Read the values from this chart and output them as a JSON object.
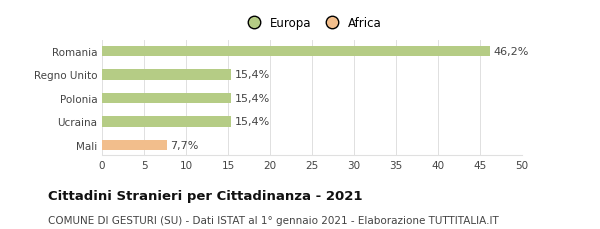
{
  "categories": [
    "Mali",
    "Ucraina",
    "Polonia",
    "Regno Unito",
    "Romania"
  ],
  "values": [
    7.7,
    15.4,
    15.4,
    15.4,
    46.2
  ],
  "labels": [
    "7,7%",
    "15,4%",
    "15,4%",
    "15,4%",
    "46,2%"
  ],
  "colors": [
    "#f2be8c",
    "#b5cc85",
    "#b5cc85",
    "#b5cc85",
    "#b5cc85"
  ],
  "legend_items": [
    {
      "label": "Europa",
      "color": "#b5cc85"
    },
    {
      "label": "Africa",
      "color": "#f2be8c"
    }
  ],
  "xlim": [
    0,
    50
  ],
  "xticks": [
    0,
    5,
    10,
    15,
    20,
    25,
    30,
    35,
    40,
    45,
    50
  ],
  "title": "Cittadini Stranieri per Cittadinanza - 2021",
  "subtitle": "COMUNE DI GESTURI (SU) - Dati ISTAT al 1° gennaio 2021 - Elaborazione TUTTITALIA.IT",
  "title_fontsize": 9.5,
  "subtitle_fontsize": 7.5,
  "bar_height": 0.45,
  "label_fontsize": 8,
  "tick_fontsize": 7.5,
  "background_color": "#ffffff",
  "grid_color": "#e0e0e0"
}
